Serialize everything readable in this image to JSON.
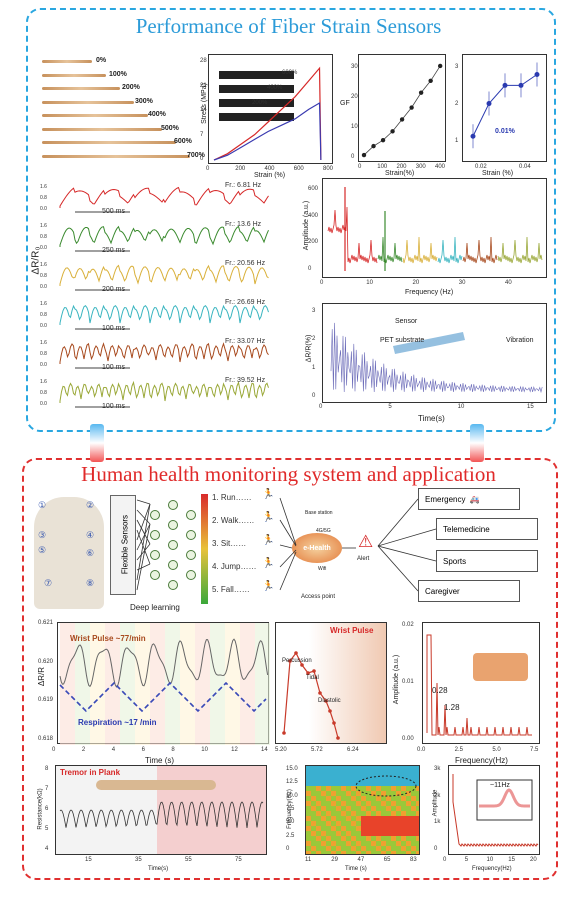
{
  "titles": {
    "top": "Performance of Fiber Strain Sensors",
    "bottom": "Human health monitoring system and application"
  },
  "fiber": {
    "strains": [
      "0%",
      "100%",
      "200%",
      "300%",
      "400%",
      "500%",
      "600%",
      "700%"
    ]
  },
  "stress": {
    "ylabel": "Stress (MPa)",
    "xlabel": "Strain (%)",
    "yticks": [
      "0",
      "7",
      "14",
      "21",
      "28"
    ],
    "xticks": [
      "0",
      "200",
      "400",
      "600",
      "800"
    ],
    "insets": [
      "600%",
      "400%",
      "200%"
    ],
    "chart_data": {
      "type": "line",
      "series": [
        {
          "values": [
            [
              0,
              0
            ],
            [
              100,
              2
            ],
            [
              200,
              5
            ],
            [
              300,
              8
            ],
            [
              400,
              12
            ],
            [
              500,
              16
            ],
            [
              600,
              20
            ],
            [
              700,
              25
            ],
            [
              780,
              29
            ],
            [
              790,
              0
            ]
          ]
        },
        {
          "values": [
            [
              0,
              0
            ],
            [
              100,
              1.5
            ],
            [
              200,
              4
            ],
            [
              300,
              6.5
            ],
            [
              400,
              9
            ],
            [
              500,
              11
            ],
            [
              600,
              13
            ],
            [
              700,
              16
            ],
            [
              780,
              18
            ],
            [
              790,
              0
            ]
          ]
        }
      ],
      "xlim": [
        0,
        850
      ],
      "ylim": [
        0,
        30
      ]
    }
  },
  "gf": {
    "ylabel": "GF",
    "xlabel": "Strain(%)",
    "yticks": [
      "0",
      "10",
      "20",
      "30"
    ],
    "xticks": [
      "0",
      "100",
      "200",
      "300",
      "400"
    ],
    "chart_data": {
      "type": "scatter",
      "x": [
        0,
        50,
        100,
        150,
        200,
        250,
        300,
        350,
        400
      ],
      "y": [
        1,
        4,
        6,
        9,
        13,
        17,
        22,
        26,
        31
      ],
      "xlim": [
        0,
        420
      ],
      "ylim": [
        0,
        33
      ]
    }
  },
  "gfzoom": {
    "xlabel": "Strain (%)",
    "yticks": [
      "1",
      "2",
      "3"
    ],
    "xticks": [
      "0.02",
      "0.04"
    ],
    "note": "0.01%",
    "chart_data": {
      "type": "scatter",
      "x": [
        0.01,
        0.02,
        0.03,
        0.04,
        0.05
      ],
      "y": [
        1.2,
        2.1,
        2.6,
        2.6,
        2.9
      ],
      "xlim": [
        0.005,
        0.055
      ],
      "ylim": [
        0.6,
        3.3
      ]
    }
  },
  "vib": {
    "ylabel": "ΔR/R₀",
    "yticks": [
      "0.0",
      "0.8",
      "1.6"
    ],
    "rows": [
      {
        "freq": "Fr.: 6.81 Hz",
        "time": "500 ms",
        "color": "#d62828"
      },
      {
        "freq": "Fr.: 13.6 Hz",
        "time": "250 ms",
        "color": "#3a8a2e"
      },
      {
        "freq": "Fr.: 20.56 Hz",
        "time": "200 ms",
        "color": "#d9b03a"
      },
      {
        "freq": "Fr.: 26.69 Hz",
        "time": "100 ms",
        "color": "#3ab5c0"
      },
      {
        "freq": "Fr.: 33.07 Hz",
        "time": "100 ms",
        "color": "#a84a1e"
      },
      {
        "freq": "Fr.: 39.52 Hz",
        "time": "100 ms",
        "color": "#9aa838"
      }
    ]
  },
  "fft": {
    "ylabel": "Amplitude (a.u.)",
    "xlabel": "Frequency (Hz)",
    "yticks": [
      "0",
      "200",
      "400",
      "600"
    ],
    "xticks": [
      "0",
      "10",
      "20",
      "30",
      "40"
    ]
  },
  "decay": {
    "ylabel": "ΔR/R(%)",
    "xlabel": "Time(s)",
    "yticks": [
      "0",
      "1",
      "2",
      "3"
    ],
    "xticks": [
      "0",
      "5",
      "10",
      "15"
    ],
    "sensor": "Sensor",
    "pet": "PET substrate",
    "vibration": "Vibration"
  },
  "system": {
    "flex": "Flexible Sensors",
    "deep": "Deep learning",
    "acts": [
      "1. Run……",
      "2. Walk……",
      "3. Sit……",
      "4. Jump……",
      "5. Fall……"
    ],
    "base": "Base station",
    "g": "4G/5G",
    "eh": "e-Health",
    "wifi": "Wifi",
    "ap": "Access point",
    "alert": "Alert",
    "outs": [
      "Emergency",
      "Telemedicine",
      "Sports",
      "Caregiver"
    ],
    "nums": [
      "①",
      "②",
      "③",
      "④",
      "⑤",
      "⑥",
      "⑦",
      "⑧"
    ]
  },
  "pulse": {
    "ylabel": "ΔR/R",
    "xlabel": "Time (s)",
    "yticks": [
      "0.618",
      "0.619",
      "0.620",
      "0.621"
    ],
    "xticks": [
      "0",
      "2",
      "4",
      "6",
      "8",
      "10",
      "12",
      "14"
    ],
    "wp": "Wrist Pulse ~77/min",
    "resp": "Respiration ~17 /min"
  },
  "wrist": {
    "title": "Wrist Pulse",
    "perc": "Percussion",
    "tidal": "Tidal",
    "diast": "Diastolic",
    "xticks": [
      "5.20",
      "5.72",
      "6.24"
    ]
  },
  "amp1": {
    "ylabel": "Amplitude (a.u.)",
    "xlabel": "Frequency(Hz)",
    "yticks": [
      "0.00",
      "0.01",
      "0.02"
    ],
    "xticks": [
      "0.0",
      "2.5",
      "5.0",
      "7.5"
    ],
    "p1": "0.28",
    "p2": "1.28"
  },
  "tremor": {
    "title": "Tremor in Plank",
    "ylabel": "Resistance(kΩ)",
    "xlabel": "Time(s)",
    "yticks": [
      "4",
      "5",
      "6",
      "7",
      "8"
    ],
    "xticks": [
      "15",
      "35",
      "55",
      "75"
    ]
  },
  "spec": {
    "ylabel": "Frequency(Hz)",
    "xlabel": "Time (s)",
    "yticks": [
      "0",
      "2.5",
      "5.0",
      "7.5",
      "10.0",
      "12.5",
      "15.0"
    ],
    "xticks": [
      "11",
      "29",
      "47",
      "65",
      "83"
    ]
  },
  "amp2": {
    "ylabel": "Amplitude",
    "xlabel": "Frequency(Hz)",
    "yticks": [
      "0",
      "1k",
      "2k",
      "3k"
    ],
    "xticks": [
      "0",
      "5",
      "10",
      "15",
      "20"
    ],
    "note": "~11Hz"
  }
}
